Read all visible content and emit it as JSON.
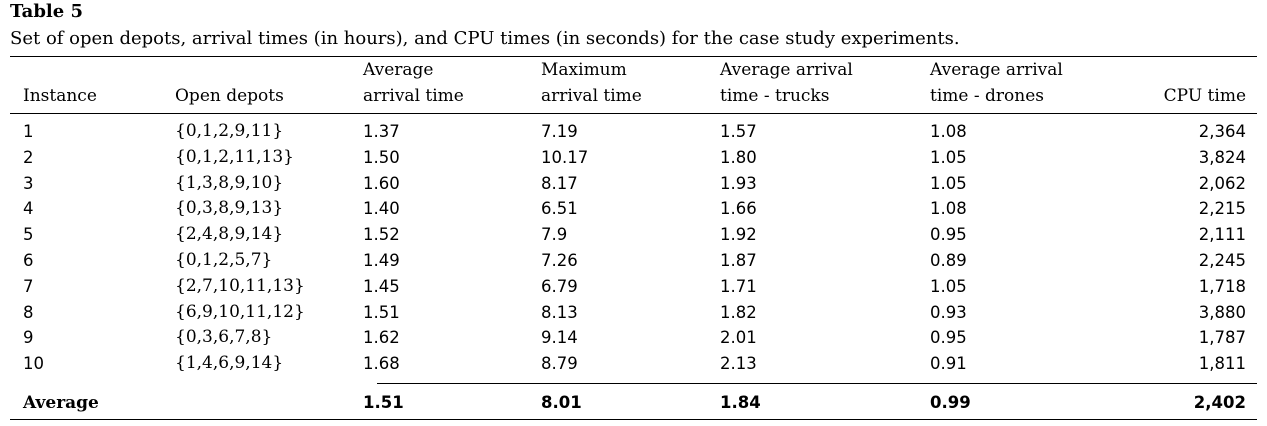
{
  "table_label": "Table 5",
  "caption": "Set of open depots, arrival times (in hours), and CPU times (in seconds) for the case study experiments.",
  "columns": [
    {
      "line1": "Instance",
      "line2": ""
    },
    {
      "line1": "Open depots",
      "line2": ""
    },
    {
      "line1": "Average",
      "line2": "arrival time"
    },
    {
      "line1": "Maximum",
      "line2": "arrival time"
    },
    {
      "line1": "Average arrival",
      "line2": "time - trucks"
    },
    {
      "line1": "Average arrival",
      "line2": "time - drones"
    },
    {
      "line1": "",
      "line2": "CPU time"
    }
  ],
  "rows": [
    [
      "1",
      "{0,1,2,9,11}",
      "1.37",
      "7.19",
      "1.57",
      "1.08",
      "2,364"
    ],
    [
      "2",
      "{0,1,2,11,13}",
      "1.50",
      "10.17",
      "1.80",
      "1.05",
      "3,824"
    ],
    [
      "3",
      "{1,3,8,9,10}",
      "1.60",
      "8.17",
      "1.93",
      "1.05",
      "2,062"
    ],
    [
      "4",
      "{0,3,8,9,13}",
      "1.40",
      "6.51",
      "1.66",
      "1.08",
      "2,215"
    ],
    [
      "5",
      "{2,4,8,9,14}",
      "1.52",
      "7.9",
      "1.92",
      "0.95",
      "2,111"
    ],
    [
      "6",
      "{0,1,2,5,7}",
      "1.49",
      "7.26",
      "1.87",
      "0.89",
      "2,245"
    ],
    [
      "7",
      "{2,7,10,11,13}",
      "1.45",
      "6.79",
      "1.71",
      "1.05",
      "1,718"
    ],
    [
      "8",
      "{6,9,10,11,12}",
      "1.51",
      "8.13",
      "1.82",
      "0.93",
      "3,880"
    ],
    [
      "9",
      "{0,3,6,7,8}",
      "1.62",
      "9.14",
      "2.01",
      "0.95",
      "1,787"
    ],
    [
      "10",
      "{1,4,6,9,14}",
      "1.68",
      "8.79",
      "2.13",
      "0.91",
      "1,811"
    ]
  ],
  "average_row": [
    "Average",
    "",
    "1.51",
    "8.01",
    "1.84",
    "0.99",
    "2,402"
  ]
}
